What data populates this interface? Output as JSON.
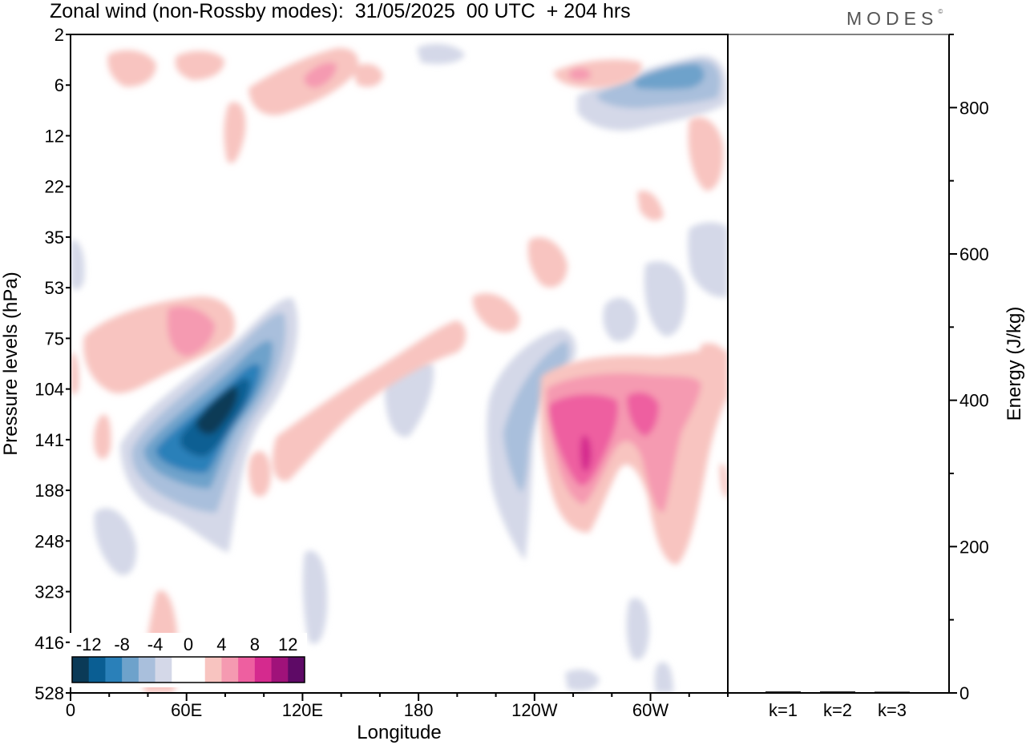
{
  "title": "Zonal wind (non-Rossby modes):  31/05/2025  00 UTC  + 204 hrs",
  "logo": "MODES",
  "logo_mark": "©",
  "colors": {
    "neg": [
      "#0b3a57",
      "#0a5e93",
      "#2a80b9",
      "#6ea2cb",
      "#a9bfdc",
      "#d4d8e8"
    ],
    "pos": [
      "#f8c4c0",
      "#f59ab1",
      "#ee5fa0",
      "#d52a8e",
      "#a0127a",
      "#5e0a66"
    ],
    "frame": "#000000"
  },
  "chart_data": [
    {
      "type": "heatmap",
      "title": "Zonal wind (non-Rossby modes):  31/05/2025  00 UTC  + 204 hrs",
      "xlabel": "Longitude",
      "ylabel": "Pressure levels (hPa)",
      "x_ticks": [
        "0",
        "60E",
        "120E",
        "180",
        "120W",
        "60W"
      ],
      "y_ticks": [
        "2",
        "6",
        "12",
        "22",
        "35",
        "53",
        "75",
        "104",
        "141",
        "188",
        "248",
        "323",
        "416",
        "528"
      ],
      "colorbar_labels": [
        "-12",
        "-8",
        "-4",
        "0",
        "4",
        "8",
        "12"
      ],
      "features": [
        {
          "sign": "neg",
          "lon": 75,
          "level": "120",
          "peak": -13
        },
        {
          "sign": "neg",
          "lon": 60,
          "level": "150",
          "peak": -8
        },
        {
          "sign": "neg",
          "lon": 230,
          "level": "70",
          "peak": -6
        },
        {
          "sign": "neg",
          "lon": 320,
          "level": "7",
          "peak": -8
        },
        {
          "sign": "neg",
          "lon": 333,
          "level": "45",
          "peak": -6
        },
        {
          "sign": "pos",
          "lon": 265,
          "level": "150",
          "peak": 9
        },
        {
          "sign": "pos",
          "lon": 295,
          "level": "130",
          "peak": 6
        },
        {
          "sign": "pos",
          "lon": 55,
          "level": "80",
          "peak": 5
        },
        {
          "sign": "pos",
          "lon": 130,
          "level": "6",
          "peak": 6
        },
        {
          "sign": "pos",
          "lon": 195,
          "level": "95",
          "peak": 3
        }
      ]
    },
    {
      "type": "bar",
      "categories": [
        "k=1",
        "k=2",
        "k=3"
      ],
      "values": [
        2,
        2,
        1
      ],
      "ylabel": "Energy (J/kg)",
      "ylim": [
        0,
        900
      ],
      "y_ticks": [
        "0",
        "200",
        "400",
        "600",
        "800"
      ]
    }
  ]
}
